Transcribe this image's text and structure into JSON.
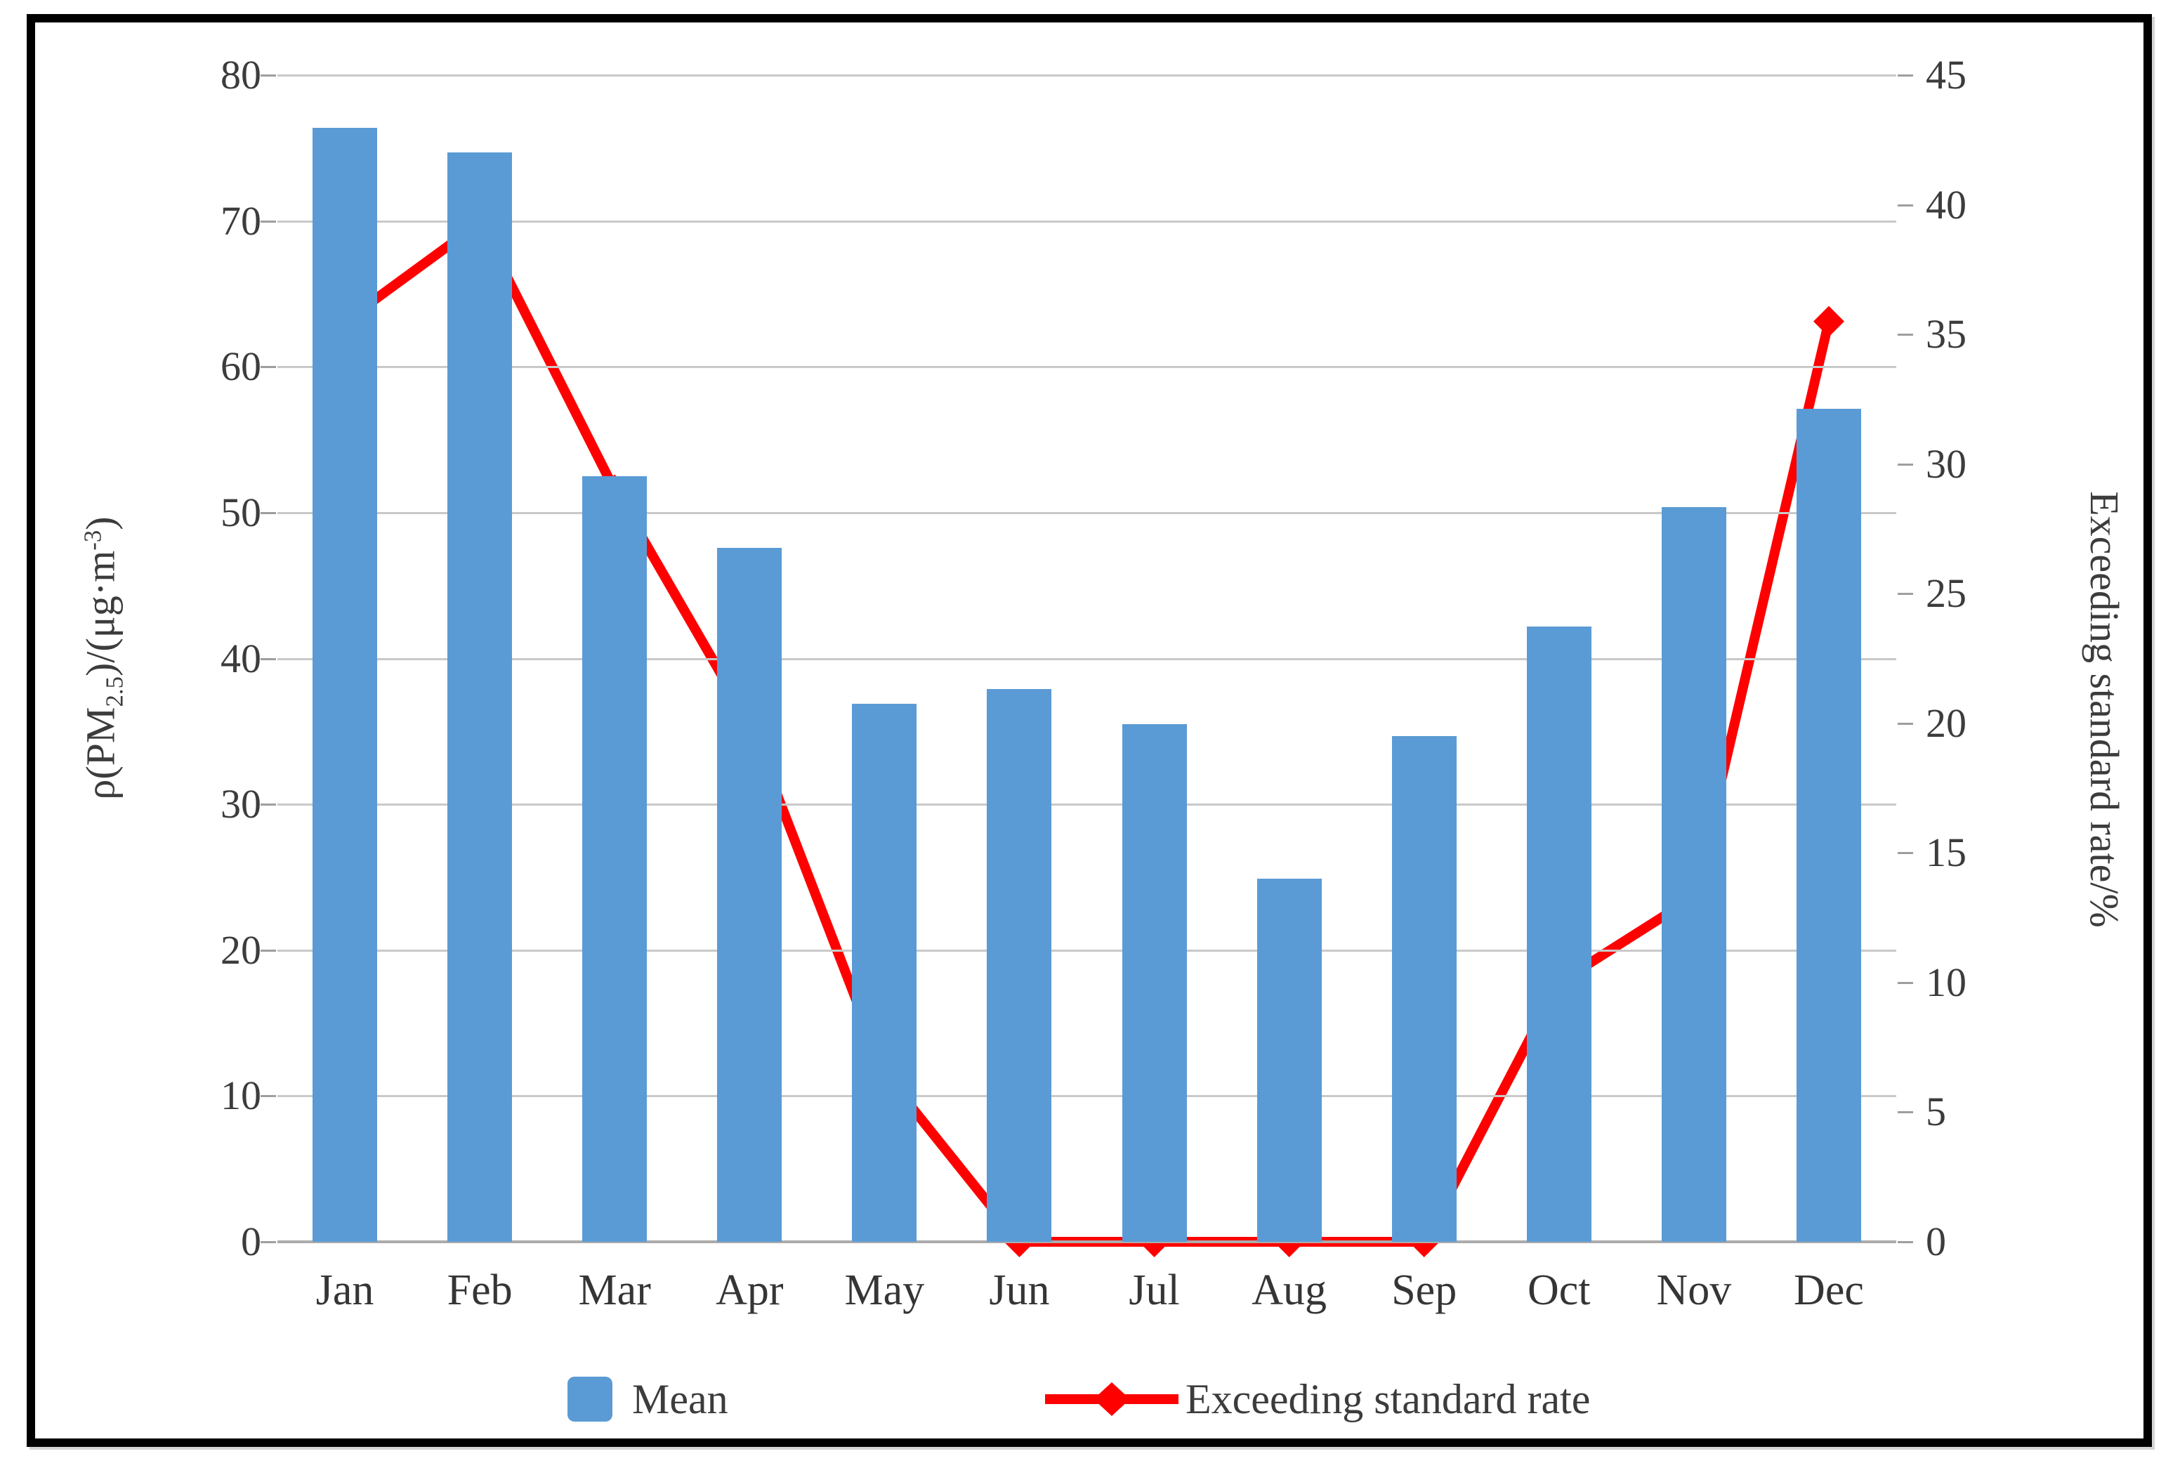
{
  "figure": {
    "left_axis_title_full": "ρ(PM2.5)/(μg·m-3)",
    "left_axis_title_parts": {
      "pre": "ρ(PM",
      "sub": "2.5",
      "mid": ")/(μg·m",
      "sup": "-3",
      "post": ")"
    },
    "right_axis_title": "Exceeding standard rate/%"
  },
  "chart_data": {
    "type": "combo bar+line, dual y-axes",
    "categories": [
      "Jan",
      "Feb",
      "Mar",
      "Apr",
      "May",
      "Jun",
      "Jul",
      "Aug",
      "Sep",
      "Oct",
      "Nov",
      "Dec"
    ],
    "series": [
      {
        "name": "Mean",
        "type": "bar",
        "axis": "left",
        "color": "#5B9BD5",
        "values": [
          76.4,
          74.7,
          52.5,
          47.6,
          36.9,
          37.9,
          35.5,
          24.9,
          34.7,
          42.2,
          50.4,
          57.1
        ]
      },
      {
        "name": "Exceeding standard rate",
        "type": "line",
        "axis": "right",
        "color": "#FF0000",
        "marker": "diamond",
        "values": [
          35.5,
          39.3,
          29.0,
          20.0,
          6.5,
          0,
          0,
          0,
          0,
          10.0,
          13.3,
          35.5
        ]
      }
    ],
    "left_axis": {
      "label": "ρ(PM2.5)/(μg·m-3)",
      "min": 0,
      "max": 80,
      "step": 10,
      "ticks": [
        0,
        10,
        20,
        30,
        40,
        50,
        60,
        70,
        80
      ]
    },
    "right_axis": {
      "label": "Exceeding standard rate/%",
      "min": 0,
      "max": 45,
      "step": 5,
      "ticks": [
        0,
        5,
        10,
        15,
        20,
        25,
        30,
        35,
        40,
        45
      ]
    },
    "grid": true,
    "legend_position": "bottom"
  },
  "colors": {
    "bar": "#5B9BD5",
    "line": "#FF0000",
    "grid": "#C9C9C9",
    "axis_line": "#ABABAB",
    "tick_mark": "#9E9E9E",
    "text": "#3C3C3C",
    "frame": "#000000",
    "background": "#FFFFFF"
  }
}
